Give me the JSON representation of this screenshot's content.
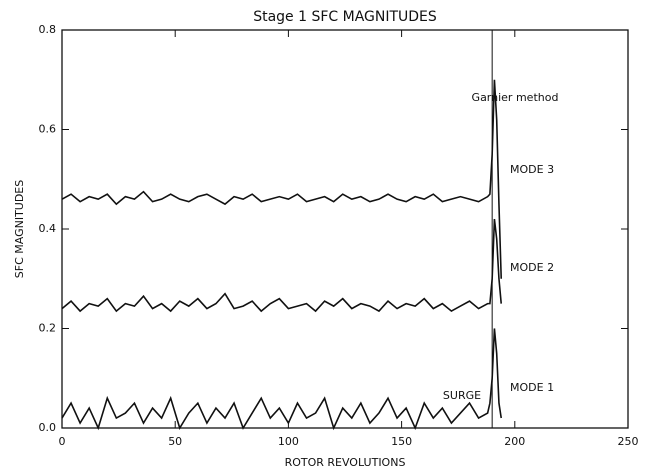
{
  "chart_data": {
    "type": "line",
    "title": "Stage 1 SFC MAGNITUDES",
    "x_label": "ROTOR REVOLUTIONS",
    "y_label": "SFC MAGNITUDES",
    "annotations": [
      "Garnier method",
      "SURGE"
    ],
    "surge_x": 190,
    "xlim": [
      0,
      250
    ],
    "xticks": [
      0,
      50,
      100,
      150,
      200,
      250
    ],
    "ylim": [
      0,
      0.8
    ],
    "yticks": [
      {
        "value": 0,
        "label": "0.0"
      },
      0.2,
      0.4,
      0.6,
      0.8
    ],
    "grid": false,
    "x": [
      0,
      4,
      8,
      12,
      16,
      20,
      24,
      28,
      32,
      36,
      40,
      44,
      48,
      52,
      56,
      60,
      64,
      68,
      72,
      76,
      80,
      84,
      88,
      92,
      96,
      100,
      104,
      108,
      112,
      116,
      120,
      124,
      128,
      132,
      136,
      140,
      144,
      148,
      152,
      156,
      160,
      164,
      168,
      172,
      176,
      180,
      184,
      188,
      189,
      190,
      191,
      192,
      193,
      194
    ],
    "series": [
      {
        "name": "MODE 3",
        "color": "#111111",
        "values": [
          0.46,
          0.47,
          0.455,
          0.465,
          0.46,
          0.47,
          0.45,
          0.465,
          0.46,
          0.475,
          0.455,
          0.46,
          0.47,
          0.46,
          0.455,
          0.465,
          0.47,
          0.46,
          0.45,
          0.465,
          0.46,
          0.47,
          0.455,
          0.46,
          0.465,
          0.46,
          0.47,
          0.455,
          0.46,
          0.465,
          0.455,
          0.47,
          0.46,
          0.465,
          0.455,
          0.46,
          0.47,
          0.46,
          0.455,
          0.465,
          0.46,
          0.47,
          0.455,
          0.46,
          0.465,
          0.46,
          0.455,
          0.465,
          0.47,
          0.55,
          0.7,
          0.62,
          0.45,
          0.3
        ]
      },
      {
        "name": "MODE 2",
        "color": "#111111",
        "values": [
          0.24,
          0.255,
          0.235,
          0.25,
          0.245,
          0.26,
          0.235,
          0.25,
          0.245,
          0.265,
          0.24,
          0.25,
          0.235,
          0.255,
          0.245,
          0.26,
          0.24,
          0.25,
          0.27,
          0.24,
          0.245,
          0.255,
          0.235,
          0.25,
          0.26,
          0.24,
          0.245,
          0.25,
          0.235,
          0.255,
          0.245,
          0.26,
          0.24,
          0.25,
          0.245,
          0.235,
          0.255,
          0.24,
          0.25,
          0.245,
          0.26,
          0.24,
          0.25,
          0.235,
          0.245,
          0.255,
          0.24,
          0.25,
          0.25,
          0.3,
          0.42,
          0.38,
          0.3,
          0.25
        ]
      },
      {
        "name": "MODE 1",
        "color": "#111111",
        "values": [
          0.02,
          0.05,
          0.01,
          0.04,
          0.0,
          0.06,
          0.02,
          0.03,
          0.05,
          0.01,
          0.04,
          0.02,
          0.06,
          0.0,
          0.03,
          0.05,
          0.01,
          0.04,
          0.02,
          0.05,
          0.0,
          0.03,
          0.06,
          0.02,
          0.04,
          0.01,
          0.05,
          0.02,
          0.03,
          0.06,
          0.0,
          0.04,
          0.02,
          0.05,
          0.01,
          0.03,
          0.06,
          0.02,
          0.04,
          0.0,
          0.05,
          0.02,
          0.04,
          0.01,
          0.03,
          0.05,
          0.02,
          0.03,
          0.05,
          0.1,
          0.2,
          0.15,
          0.05,
          0.02
        ]
      }
    ]
  }
}
